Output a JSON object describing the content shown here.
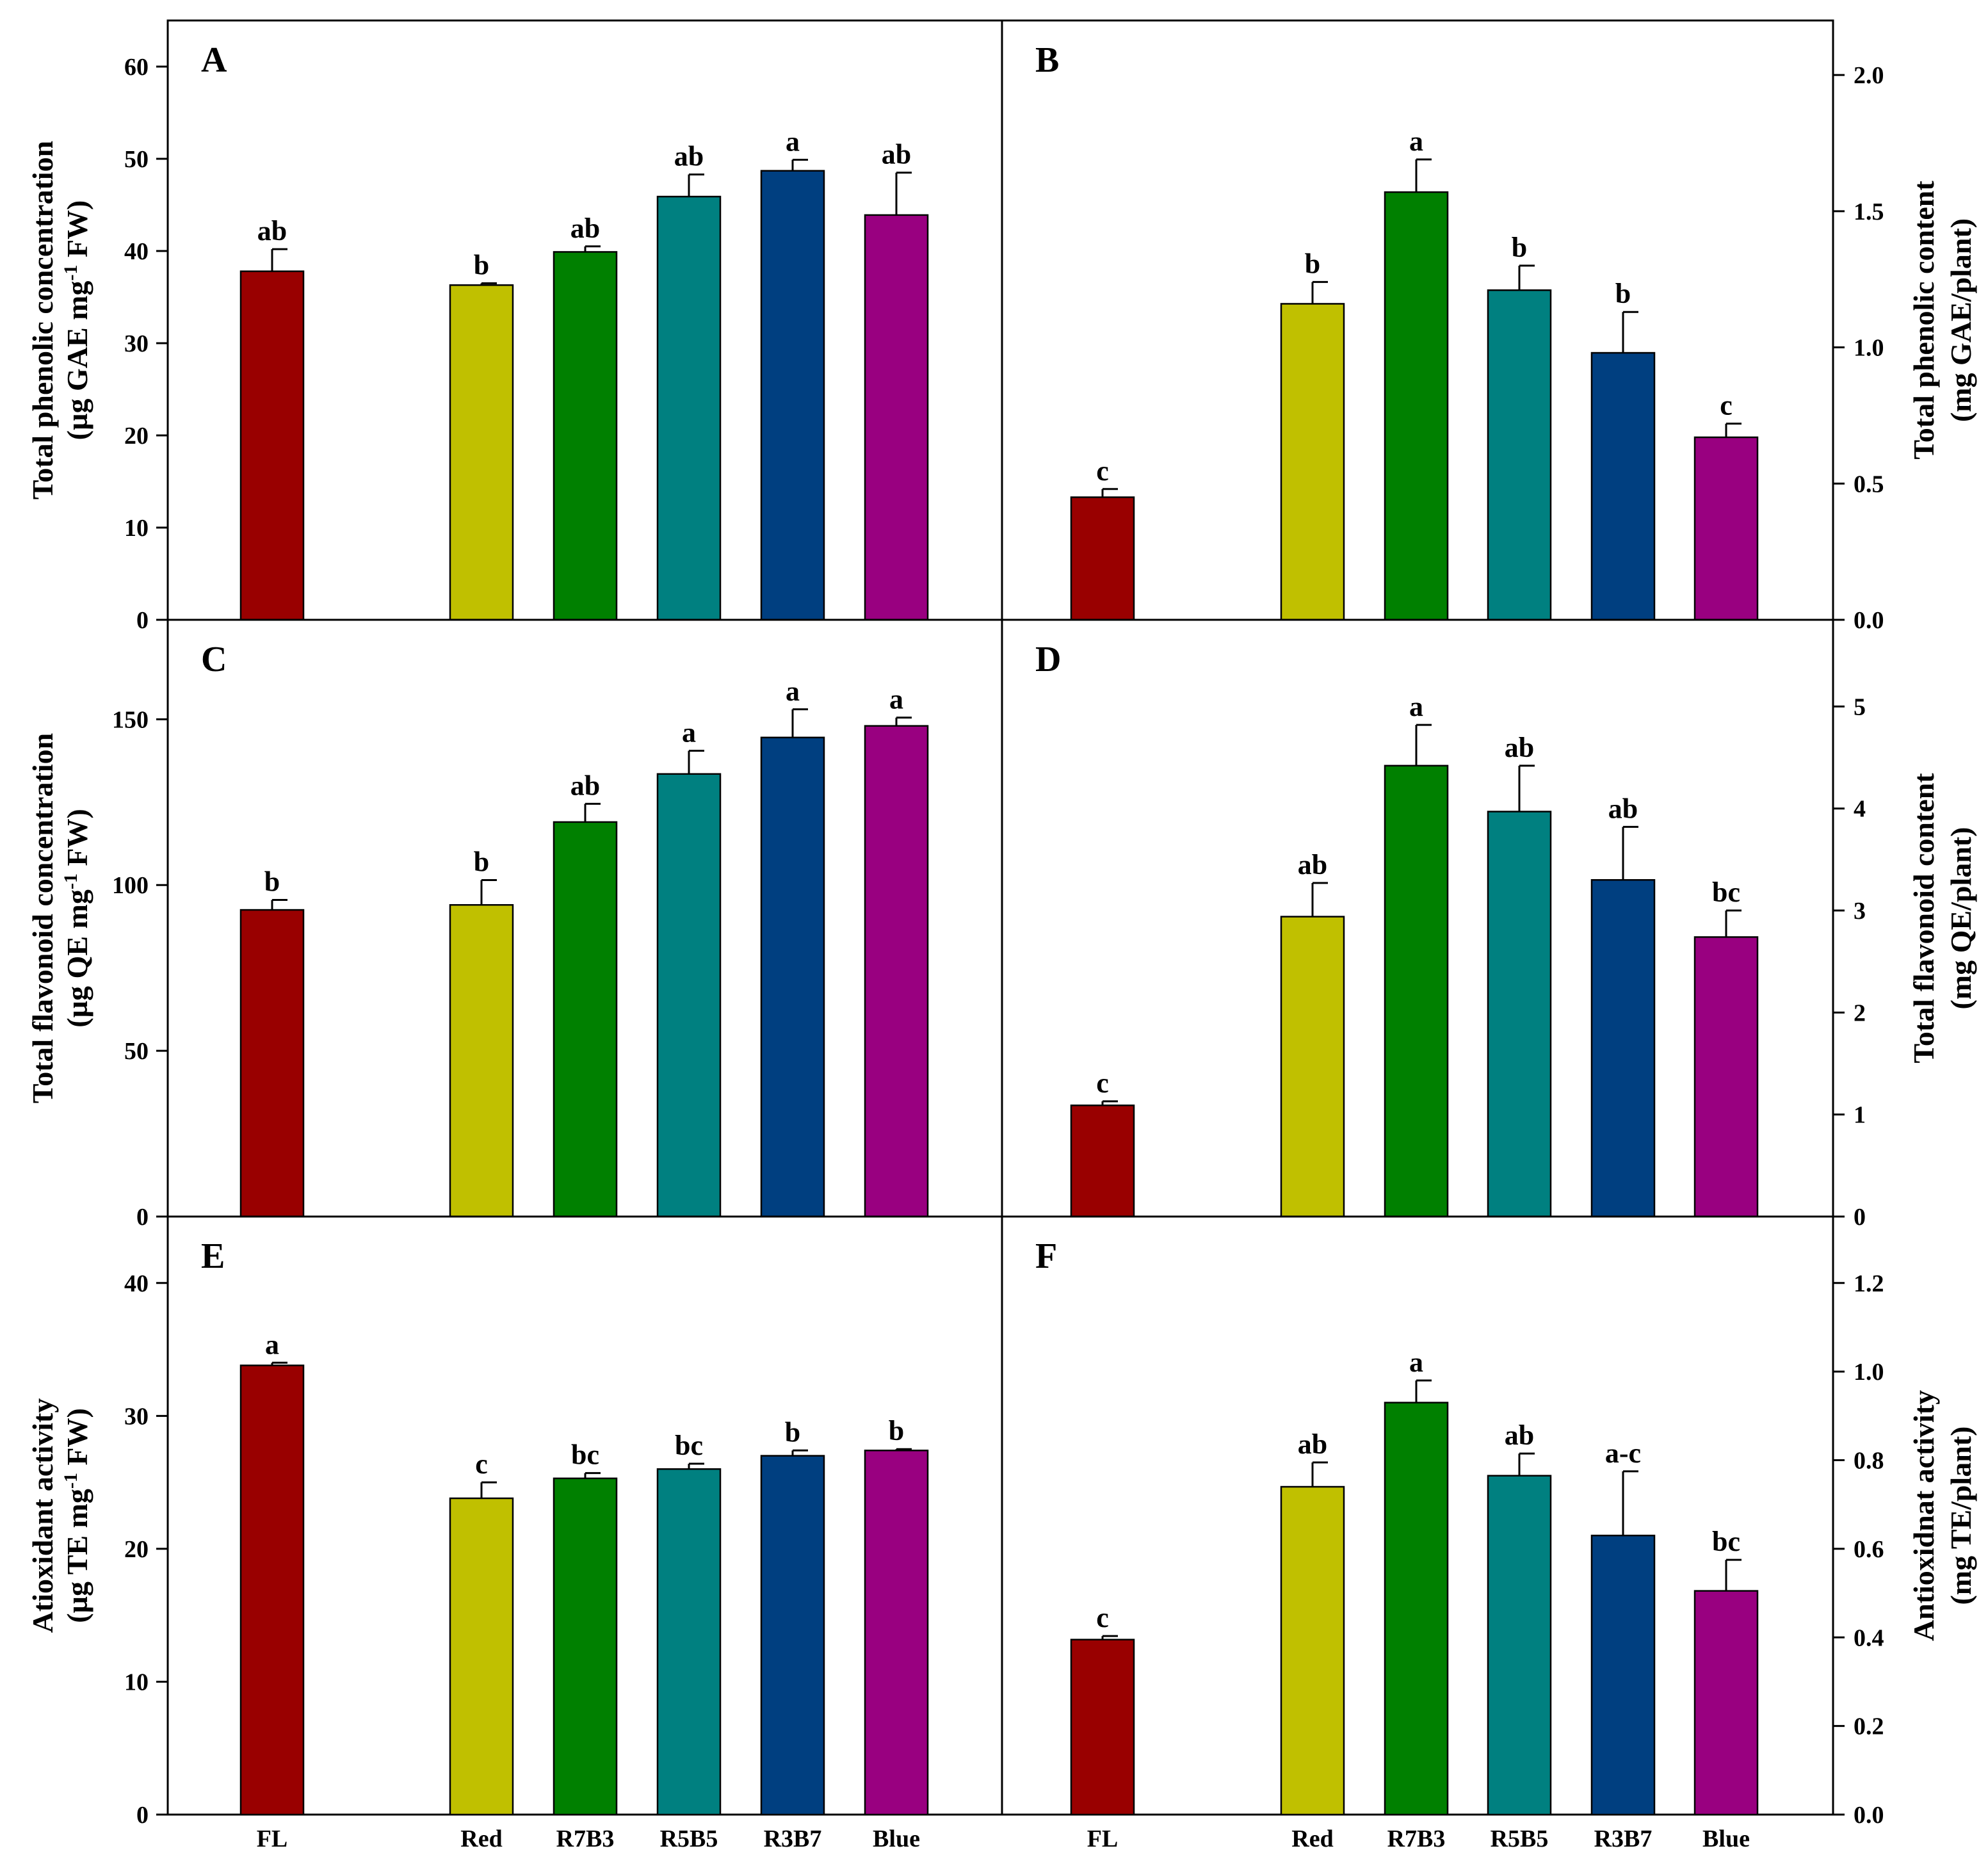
{
  "figure": {
    "x_categories": [
      "FL",
      "Red",
      "R7B3",
      "R5B5",
      "R3B7",
      "Blue"
    ],
    "colors": [
      "#990000",
      "#c0c000",
      "#008000",
      "#008080",
      "#003f80",
      "#990080"
    ]
  },
  "chart_data": [
    {
      "panel": "A",
      "type": "bar",
      "categories": [
        "FL",
        "Red",
        "R7B3",
        "R5B5",
        "R3B7",
        "Blue"
      ],
      "values": [
        37.8,
        36.3,
        39.9,
        45.9,
        48.7,
        43.9
      ],
      "errors": [
        2.4,
        0.2,
        0.6,
        2.4,
        1.2,
        4.6
      ],
      "labels": [
        "ab",
        "b",
        "ab",
        "ab",
        "a",
        "ab"
      ],
      "ylabel": "Total phenolic concentration",
      "ylabel_units": [
        "(µg GAE mg",
        "-1",
        " FW)"
      ],
      "ylim": [
        0,
        65
      ],
      "yticks": [
        0,
        10,
        20,
        30,
        40,
        50,
        60
      ],
      "axis_side": "left"
    },
    {
      "panel": "B",
      "type": "bar",
      "categories": [
        "FL",
        "Red",
        "R7B3",
        "R5B5",
        "R3B7",
        "Blue"
      ],
      "values": [
        0.45,
        1.16,
        1.57,
        1.21,
        0.98,
        0.67
      ],
      "errors": [
        0.03,
        0.08,
        0.12,
        0.09,
        0.15,
        0.05
      ],
      "labels": [
        "c",
        "b",
        "a",
        "b",
        "b",
        "c"
      ],
      "ylabel": "Total phenolic content",
      "ylabel_units": [
        "(mg GAE/plant)"
      ],
      "ylim": [
        0,
        2.2
      ],
      "yticks": [
        "0.0",
        "0.5",
        "1.0",
        "1.5",
        "2.0"
      ],
      "axis_side": "right"
    },
    {
      "panel": "C",
      "type": "bar",
      "categories": [
        "FL",
        "Red",
        "R7B3",
        "R5B5",
        "R3B7",
        "Blue"
      ],
      "values": [
        92.5,
        94,
        119,
        133.5,
        144.5,
        148
      ],
      "errors": [
        3,
        7.5,
        5.5,
        7,
        8.5,
        2.5
      ],
      "labels": [
        "b",
        "b",
        "ab",
        "a",
        "a",
        "a"
      ],
      "ylabel": "Total flavonoid concentration",
      "ylabel_units": [
        "(µg QE mg",
        "-1",
        " FW)"
      ],
      "ylim": [
        0,
        180
      ],
      "yticks": [
        0,
        50,
        100,
        150
      ],
      "axis_side": "left"
    },
    {
      "panel": "D",
      "type": "bar",
      "categories": [
        "FL",
        "Red",
        "R7B3",
        "R5B5",
        "R3B7",
        "Blue"
      ],
      "values": [
        1.09,
        2.94,
        4.42,
        3.97,
        3.3,
        2.74
      ],
      "errors": [
        0.04,
        0.33,
        0.4,
        0.45,
        0.52,
        0.26
      ],
      "labels": [
        "c",
        "ab",
        "a",
        "ab",
        "ab",
        "bc"
      ],
      "ylabel": "Total flavonoid content",
      "ylabel_units": [
        "(mg QE/plant)"
      ],
      "ylim": [
        0,
        5.85
      ],
      "yticks": [
        0,
        1,
        2,
        3,
        4,
        5
      ],
      "axis_side": "right"
    },
    {
      "panel": "E",
      "type": "bar",
      "categories": [
        "FL",
        "Red",
        "R7B3",
        "R5B5",
        "R3B7",
        "Blue"
      ],
      "values": [
        33.8,
        23.8,
        25.3,
        26,
        27,
        27.4
      ],
      "errors": [
        0.2,
        1.2,
        0.4,
        0.4,
        0.4,
        0.1
      ],
      "labels": [
        "a",
        "c",
        "bc",
        "bc",
        "b",
        "b"
      ],
      "ylabel": "Atioxidant activity",
      "ylabel_units": [
        "(µg TE mg",
        "-1",
        " FW)"
      ],
      "ylim": [
        0,
        45
      ],
      "yticks": [
        0,
        10,
        20,
        30,
        40
      ],
      "axis_side": "left"
    },
    {
      "panel": "F",
      "type": "bar",
      "categories": [
        "FL",
        "Red",
        "R7B3",
        "R5B5",
        "R3B7",
        "Blue"
      ],
      "values": [
        0.395,
        0.74,
        0.93,
        0.765,
        0.63,
        0.505
      ],
      "errors": [
        0.008,
        0.055,
        0.05,
        0.05,
        0.145,
        0.07
      ],
      "labels": [
        "c",
        "ab",
        "a",
        "ab",
        "a-c",
        "bc"
      ],
      "ylabel": "Antioxidnat activity",
      "ylabel_units": [
        "(mg TE/plant)"
      ],
      "ylim": [
        0,
        1.35
      ],
      "yticks": [
        "0.0",
        "0.2",
        "0.4",
        "0.6",
        "0.8",
        "1.0",
        "1.2"
      ],
      "axis_side": "right"
    }
  ]
}
